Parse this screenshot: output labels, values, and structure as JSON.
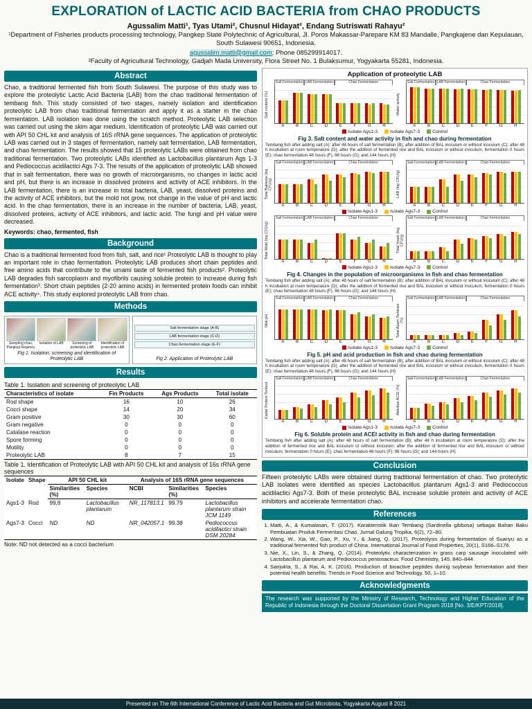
{
  "header": {
    "title": "EXPLORATION of LACTIC ACID BACTERIA from CHAO PRODUCTS",
    "authors": "Agussalim Matti¹, Tyas Utami², Chusnul Hidayat², Endang Sutriswati Rahayu²",
    "affiliation1": "¹Department of Fisheries products processing technology, Pangkep State Polytechnic of Agricultural, Jl. Poros Makassar-Parepare KM 83 Mandalle, Pangkajene dan Kepulauan, South Sulawesi 90651, Indonesia.",
    "email": "agussalim.matti@gmail.com",
    "phone": "; Phone 085299914017.",
    "affiliation2": "²Faculty of Agricultural Technology, Gadjah Mada University, Flora Street No. 1 Bulaksumur, Yogyakarta 55281, Indonesia."
  },
  "abstract": {
    "heading": "Abstract",
    "body": "Chao, a traditional fermented fish from South Sulawesi. The purpose of this study was to explore the proteolytic Lactic Acid Bacteria (LAB) from the chao traditional fermentation of tembang fish. This study consisted of two stages, namely isolation and identification proteolytic LAB from chao traditional fermentation and apply it as a starter in the chao fermentation. LAB isolation was done using the scratch method. Proteolytic LAB selection was carried out using the skim agar medium. Identification of proteolytic LAB was carried out with API 50 CHL kit and analysis of 16S rRNA gene sequences. The application of proteolytic LAB was carried out in 3 stages of fermentation, namely salt fermentation, LAB fermentation, and chao fermentation. The results showed that 15 proteolytic LABs were obtained from chao traditional fermentation. Two proteolytic LABs identified as Lactobacillus plantarum Ags 1-3 and Pediococcus acidilactici Ags 7-3. The results of the application of proteolytic LAB showed that in salt fermentation, there was no growth of microorganisms, no changes in lactic acid and pH, but there is an increase in dissolved proteins and activity of ACE inhibitors. In the LAB fermentation, there is an increase in total bacteria, LAB, yeast, dissolved proteins and the activity of ACE inhibitors, but the mold not grow, not change in the value of pH and lactic acid. In the chao fermentation, there is an increase in the number of bacteria, LAB, yeast, dissolved proteins, activity of ACE inhibitors, and lactic acid. The fungi and pH value were decreased.",
    "keywords": "Keywords: chao, fermented, fish"
  },
  "background": {
    "heading": "Background",
    "body": "Chao is a traditional fermented food from fish, salt, and rice¹ Proteolytic LAB is thought to play an important role in chao fermentation. Proteolytic LAB produces short chain peptides and free amino acids that contribute to the umami taste of fermented fish products². Proteolytic LAB degrades fish sarcoplasm and myofibrils causing soluble protein to increase during fish fermentation³. Short chain peptides (2-20 amino acids) in fermented protein foods can inhibit ACE activity⁴. This study explored proteolytic LAB from chao."
  },
  "methods": {
    "heading": "Methods",
    "fig1_caption": "Fig 1. Isolation, screening and identification of Proteolytic LAB",
    "fig2_caption": "Fig 2. Application of Proteolytic LAB",
    "fig1_steps": [
      "Sampling chao, Pangkep Regency",
      "Isolation of LAB",
      "Screening of proteolytic LAB",
      "Identification of proteolytic LAB"
    ],
    "fig2_labels": [
      "Salt fermentation stage (A-B)",
      "LAB fermentation stage (C-D)",
      "Chao fermentation stage (E-F)"
    ]
  },
  "results": {
    "heading": "Results",
    "table1": {
      "caption": "Table 1. Isolation and screening of proteolytic LAB",
      "headers": [
        "Characteristics of isolate",
        "Fin Products",
        "Ags Products",
        "Total isolate"
      ],
      "rows": [
        [
          "Rod shape",
          "16",
          "10",
          "26"
        ],
        [
          "Cocci shape",
          "14",
          "20",
          "34"
        ],
        [
          "Gram positive",
          "30",
          "30",
          "60"
        ],
        [
          "Gram negative",
          "0",
          "0",
          "0"
        ],
        [
          "Catalase reaction",
          "0",
          "0",
          "0"
        ],
        [
          "Spore forming",
          "0",
          "0",
          "0"
        ],
        [
          "Motility",
          "0",
          "0",
          "0"
        ],
        [
          "Proteolytic LAB",
          "8",
          "7",
          "15"
        ]
      ]
    },
    "table2": {
      "caption": "Table 1. Identification of Proteolytic LAB with API 50 CHL kit and analysis of 16s rRNA gene sequences",
      "col_isolate": "Isolate",
      "col_shape": "Shape",
      "group_api": "API 50 CHL kit",
      "group_rrna": "Analysis of 16S rRNA gene sequences",
      "col_similarities": "Similarities (%)",
      "col_species": "Species",
      "col_ncbi": "NCBI",
      "rows": [
        [
          "Ags1-3",
          "Rod",
          "99,8",
          "Lactobacillus plantarum",
          "NR_117813.1",
          "99.79",
          "Lactobacillus plantarum strain JCM 1149"
        ],
        [
          "Ags7-3",
          "Cocci",
          "ND",
          "ND",
          "NR_042057.1",
          "99.38",
          "Pediococcus acidilactici strain DSM 20284"
        ]
      ],
      "note": "Note: ND not detected as a cocci bacterium"
    }
  },
  "application": {
    "title": "Application of proteolytic LAB",
    "stage_labels": [
      "Salt Fermentation",
      "LAB Fermentation",
      "Chao Fermentation"
    ],
    "legend": [
      {
        "label": "Isolate Ags1-3",
        "color": "#c00000"
      },
      {
        "label": "Isolate Ags7-3",
        "color": "#ffc000"
      },
      {
        "label": "Control",
        "color": "#70ad47"
      }
    ],
    "figures": [
      {
        "caption": "Fig 3. Salt content and water activity in fish and chao during fermentation",
        "note": "Tembang fish after adding salt (A): after 48 hours of salt fermentation (B); after addition of BAL inoculum or without inoculum (C); after 48 h incubation at room temperature (D); after the addition of fermented rice and BAL inoculum or without inoculum, fermentation 0 hours (E); chao fermentation 48 hours (F), 96 hours (G); and 144 hours (H)"
      },
      {
        "caption": "Fig 4. Changes in the population of microorganisms in fish and chao fermentation",
        "note": "Tembang fish after adding salt (A): after 48 hours of salt fermentation (B); after addition of BAL inoculum or without inoculum (C); after 48 h incubation at room temperature (D); after the addition of fermented rice and BAL inoculum or without inoculum, fermentation 0 hours (E); chao fermentation 48 hours (F), 96 hours (G); and 144 hours (H)"
      },
      {
        "caption": "Fig 5. pH and acid production in fish and chao during fermentation",
        "note": "Tembang fish after adding salt (A): after 48 hours of salt fermentation (B); after addition of BAL inoculum or without inoculum (C); after 48 h incubation at room temperature (D); after the addition of fermented rice and BAL inoculum or without inoculum, fermentation 0 hours (E); chao fermentation 48 hours (F), 96 hours (G); and 144 hours (H)"
      },
      {
        "caption": "Fig 6. Soluble protein and ACEI activity in fish and chao during fermentation",
        "note": "Tembang fish after adding salt (A): after 48 hours of salt fermentation (B); after 48 h incubation at room temperature (D); after the addition of fermented rice and BAL inoculum or without inoculum; after the addition of fermented rice and BAL inoculum or without inoculum, fermentation 0 hours (E); chao fermentation 48 hours (F); 96 hours (G); and 144 hours (H)"
      }
    ]
  },
  "chart_data": [
    {
      "type": "bar",
      "title": "Salt content",
      "ylabel": "Salt content (%)",
      "ylim": [
        0,
        25
      ],
      "categories": [
        "A",
        "B",
        "C",
        "D",
        "E",
        "F",
        "G",
        "H"
      ],
      "series": [
        {
          "name": "Isolate Ags1-3",
          "color": "#c00000",
          "values": [
            15,
            20,
            19,
            19,
            13,
            13,
            13,
            13
          ]
        },
        {
          "name": "Isolate Ags7-3",
          "color": "#ffc000",
          "values": [
            15,
            20,
            19,
            19,
            13,
            13,
            12,
            12
          ]
        },
        {
          "name": "Control",
          "color": "#70ad47",
          "values": [
            15,
            20,
            19,
            19,
            13,
            13,
            13,
            12
          ]
        }
      ]
    },
    {
      "type": "bar",
      "title": "Water activity",
      "ylabel": "Water activity",
      "ylim": [
        0,
        1
      ],
      "categories": [
        "A",
        "B",
        "C",
        "D",
        "E",
        "F",
        "G",
        "H"
      ],
      "series": [
        {
          "name": "Isolate Ags1-3",
          "color": "#c00000",
          "values": [
            0.94,
            0.9,
            0.9,
            0.89,
            0.88,
            0.87,
            0.86,
            0.85
          ]
        },
        {
          "name": "Isolate Ags7-3",
          "color": "#ffc000",
          "values": [
            0.94,
            0.9,
            0.9,
            0.89,
            0.88,
            0.87,
            0.86,
            0.85
          ]
        },
        {
          "name": "Control",
          "color": "#70ad47",
          "values": [
            0.94,
            0.9,
            0.9,
            0.9,
            0.89,
            0.88,
            0.87,
            0.86
          ]
        }
      ]
    },
    {
      "type": "bar",
      "title": "Total Bacteria",
      "ylabel": "Total Bakteria (log CFU/g)",
      "ylim": [
        0,
        12
      ],
      "categories": [
        "A",
        "B",
        "C",
        "D",
        "E",
        "F",
        "G",
        "H"
      ],
      "series": [
        {
          "name": "Isolate Ags1-3",
          "color": "#c00000",
          "values": [
            6,
            6,
            7.5,
            9,
            9,
            9.5,
            10,
            10
          ]
        },
        {
          "name": "Isolate Ags7-3",
          "color": "#ffc000",
          "values": [
            6,
            6,
            7.5,
            9,
            9,
            9.5,
            10,
            10
          ]
        },
        {
          "name": "Control",
          "color": "#70ad47",
          "values": [
            6,
            6,
            6,
            7,
            8,
            9,
            9.5,
            10
          ]
        }
      ]
    },
    {
      "type": "bar",
      "title": "LAB",
      "ylabel": "LAB (log CFU/g)",
      "ylim": [
        0,
        12
      ],
      "categories": [
        "A",
        "B",
        "C",
        "D",
        "E",
        "F",
        "G",
        "H"
      ],
      "series": [
        {
          "name": "Isolate Ags1-3",
          "color": "#c00000",
          "values": [
            5,
            5,
            7.5,
            9,
            9,
            9.5,
            10,
            10
          ]
        },
        {
          "name": "Isolate Ags7-3",
          "color": "#ffc000",
          "values": [
            5,
            5,
            7.5,
            9,
            9,
            9.5,
            10,
            10
          ]
        },
        {
          "name": "Control",
          "color": "#70ad47",
          "values": [
            5,
            5,
            5,
            7,
            8,
            9,
            9.5,
            10
          ]
        }
      ]
    },
    {
      "type": "bar",
      "title": "Total Mold",
      "ylabel": "Total Mold (log CFU/g)",
      "ylim": [
        0,
        6
      ],
      "categories": [
        "A",
        "B",
        "C",
        "D",
        "E",
        "F",
        "G",
        "H"
      ],
      "series": [
        {
          "name": "Isolate Ags1-3",
          "color": "#c00000",
          "values": [
            3,
            3,
            2.5,
            0,
            4,
            3,
            2.5,
            2
          ]
        },
        {
          "name": "Isolate Ags7-3",
          "color": "#ffc000",
          "values": [
            3,
            3,
            2.5,
            0,
            4,
            3,
            2.5,
            2
          ]
        },
        {
          "name": "Control",
          "color": "#70ad47",
          "values": [
            3,
            3,
            3,
            0,
            4,
            3.5,
            3,
            2.5
          ]
        }
      ]
    },
    {
      "type": "bar",
      "title": "Total Yeast",
      "ylabel": "Total Yeast (log CFU/g)",
      "ylim": [
        0,
        10
      ],
      "categories": [
        "A",
        "B",
        "C",
        "D",
        "E",
        "F",
        "G",
        "H"
      ],
      "series": [
        {
          "name": "Isolate Ags1-3",
          "color": "#c00000",
          "values": [
            2,
            2,
            3,
            5,
            5.5,
            6,
            6.5,
            7
          ]
        },
        {
          "name": "Isolate Ags7-3",
          "color": "#ffc000",
          "values": [
            2,
            2,
            3,
            5,
            5.5,
            6,
            6.5,
            7
          ]
        },
        {
          "name": "Control",
          "color": "#70ad47",
          "values": [
            2,
            2,
            2,
            4,
            5,
            5.5,
            6,
            6.5
          ]
        }
      ]
    },
    {
      "type": "bar",
      "title": "pH",
      "ylabel": "Nilai pH",
      "ylim": [
        0,
        8
      ],
      "categories": [
        "A",
        "B",
        "C",
        "D",
        "E",
        "F",
        "G",
        "H"
      ],
      "series": [
        {
          "name": "Isolate Ags1-3",
          "color": "#c00000",
          "values": [
            6.2,
            6.2,
            6.2,
            6.1,
            6,
            5.2,
            4.7,
            4.4
          ]
        },
        {
          "name": "Isolate Ags7-3",
          "color": "#ffc000",
          "values": [
            6.2,
            6.2,
            6.2,
            6.1,
            6,
            5.2,
            4.7,
            4.4
          ]
        },
        {
          "name": "Control",
          "color": "#70ad47",
          "values": [
            6.2,
            6.2,
            6.2,
            6.2,
            6.1,
            5.6,
            5.1,
            4.8
          ]
        }
      ]
    },
    {
      "type": "bar",
      "title": "Titratable acidity",
      "ylabel": "Total Asam Tertitrasi (%)",
      "ylim": [
        0,
        2
      ],
      "categories": [
        "A",
        "B",
        "C",
        "D",
        "E",
        "F",
        "G",
        "H"
      ],
      "series": [
        {
          "name": "Isolate Ags1-3",
          "color": "#c00000",
          "values": [
            0.2,
            0.2,
            0.2,
            0.3,
            0.4,
            1,
            1.3,
            1.5
          ]
        },
        {
          "name": "Isolate Ags7-3",
          "color": "#ffc000",
          "values": [
            0.2,
            0.2,
            0.2,
            0.3,
            0.4,
            1,
            1.3,
            1.5
          ]
        },
        {
          "name": "Control",
          "color": "#70ad47",
          "values": [
            0.2,
            0.2,
            0.2,
            0.2,
            0.3,
            0.7,
            1,
            1.2
          ]
        }
      ]
    },
    {
      "type": "bar",
      "title": "Soluble protein",
      "ylabel": "Kadar Protein Terlarut",
      "ylim": [
        0,
        8
      ],
      "categories": [
        "A",
        "B",
        "C",
        "D",
        "E",
        "F",
        "G",
        "H"
      ],
      "series": [
        {
          "name": "Isolate Ags1-3",
          "color": "#c00000",
          "values": [
            2,
            2.5,
            3,
            4,
            4.5,
            5.5,
            6,
            6.5
          ]
        },
        {
          "name": "Isolate Ags7-3",
          "color": "#ffc000",
          "values": [
            2,
            2.5,
            3,
            4,
            4.5,
            5.5,
            6,
            6.5
          ]
        },
        {
          "name": "Control",
          "color": "#70ad47",
          "values": [
            2,
            2.2,
            2.5,
            3,
            3.5,
            4.5,
            5,
            5.5
          ]
        }
      ]
    },
    {
      "type": "bar",
      "title": "ACEI activity",
      "ylabel": "Aktivitas ACEI (%)",
      "ylim": [
        0,
        100
      ],
      "categories": [
        "A",
        "B",
        "C",
        "D",
        "E",
        "F",
        "G",
        "H"
      ],
      "series": [
        {
          "name": "Isolate Ags1-3",
          "color": "#c00000",
          "values": [
            30,
            40,
            45,
            55,
            60,
            70,
            75,
            80
          ]
        },
        {
          "name": "Isolate Ags7-3",
          "color": "#ffc000",
          "values": [
            30,
            40,
            45,
            55,
            60,
            70,
            75,
            80
          ]
        },
        {
          "name": "Control",
          "color": "#70ad47",
          "values": [
            30,
            35,
            38,
            45,
            50,
            58,
            65,
            70
          ]
        }
      ]
    }
  ],
  "conclusion": {
    "heading": "Conclusion",
    "body": "Fifteen proteolytic LABs were obtained during traditional fermentation of chao. Two proteolytic LAB isolates were identified as species Lactobacillus plantarum Ags1-3 and Pediococcus acidilactici Ags7-3. Both of these proteolytic BAL increase soluble protein and activity of ACE inhibitors and accelerate fermentation chao."
  },
  "references": {
    "heading": "References",
    "items": [
      "Matti, A., & Kumalasari, T. (2017). Karakteristik Ikan Tembang (Sardinella gibbosa) sebagai Bahan Baku Pembuatan Produk Fermentasi Chao. Jurnal Galung Tropika, 6(2), 72–80.",
      "Wang, W., Xia, W., Gao, P., Xu, Y., & Jiang, Q. (2017). Proteolysis during fermentation of Suanyu as a traditional fermented fish product of China. International Journal of Food Properties, 20(1), S166–S176.",
      "Nie, X., Lin, S., & Zhang, Q. (2014). Proteolytic characterization in grass carp sausage inoculated with Lactobacillus plantarum and Pediococcus pentosaceus. Food Chemistry, 145, 840–844.",
      "Sanjukta, S., & Rai, A. K. (2016). Production of bioactive peptides during soybean fermentation and their potential health benefits. Trends in Food Science and Technology, 50, 1–10."
    ]
  },
  "acknowledgments": {
    "heading": "Acknowledgments",
    "body": "The research was supported by the Ministry of Research, Technology and Higher Education of the Republic of Indonesia through the Doctoral Dissertation Grant Program 2018 [No. 3/E/KPT/2018]."
  },
  "footer": {
    "text": "Presented on The 6th International Conference of Lactic Acid Bacteria and Gut Microbiota, Yogyakarta August 8 2021"
  }
}
